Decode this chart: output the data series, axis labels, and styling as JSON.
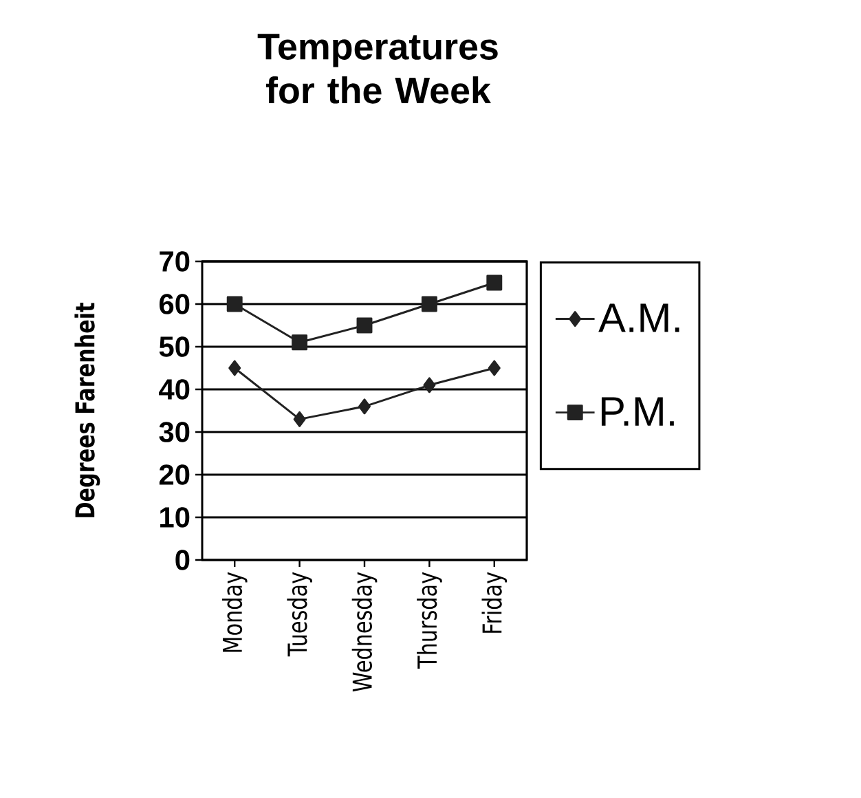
{
  "chart_data": {
    "type": "line",
    "title": "Temperatures for the Week",
    "ylabel": "Degrees Farenheit",
    "categories": [
      "Monday",
      "Tuesday",
      "Wednesday",
      "Thursday",
      "Friday"
    ],
    "series": [
      {
        "name": "A.M.",
        "color": "#222222",
        "marker": "diamond",
        "values": [
          45,
          33,
          36,
          41,
          45
        ]
      },
      {
        "name": "P.M.",
        "color": "#222222",
        "marker": "square",
        "values": [
          60,
          51,
          55,
          60,
          65
        ]
      }
    ],
    "ylim": [
      0,
      70
    ],
    "yticks": [
      0,
      10,
      20,
      30,
      40,
      50,
      60,
      70
    ],
    "grid": "y",
    "legend": "right",
    "line_style": "solid"
  }
}
